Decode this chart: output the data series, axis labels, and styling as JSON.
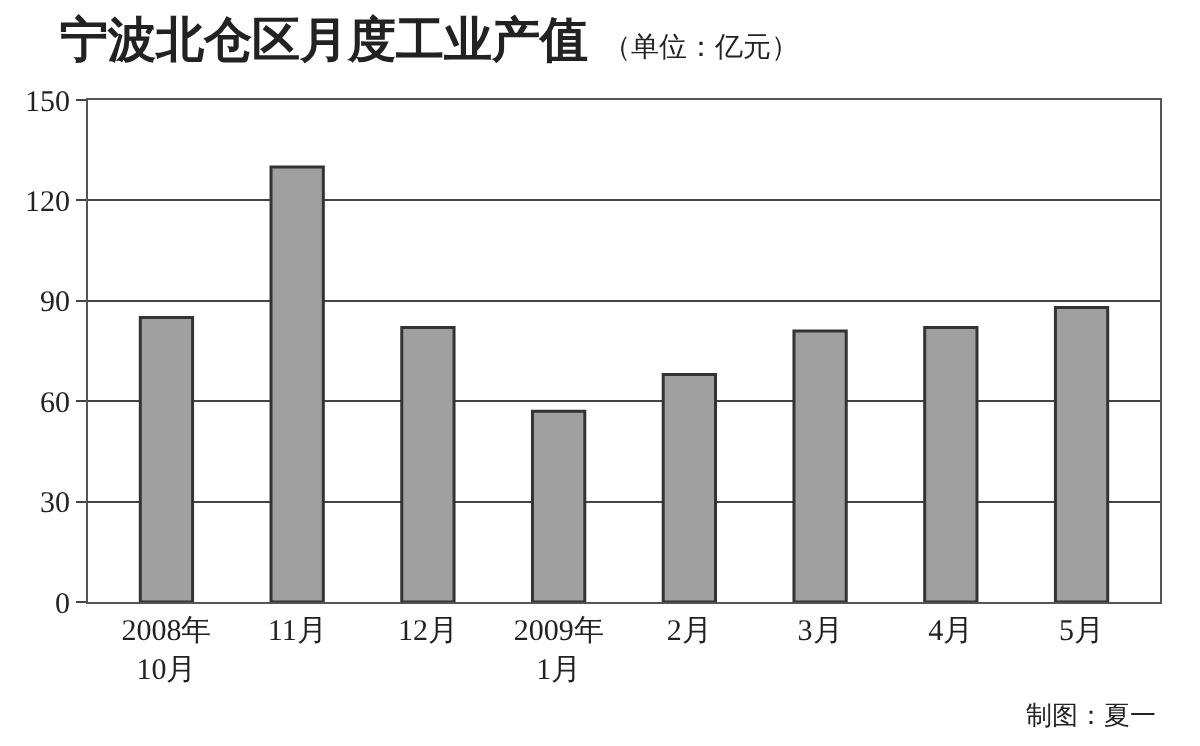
{
  "chart_data": {
    "type": "bar",
    "title": "宁波北仓区月度工业产值",
    "subtitle": "（单位：亿元）",
    "categories": [
      "2008年\n10月",
      "11月",
      "12月",
      "2009年\n1月",
      "2月",
      "3月",
      "4月",
      "5月"
    ],
    "values": [
      85,
      130,
      82,
      57,
      68,
      81,
      82,
      88
    ],
    "color": "#a0a0a0",
    "ylim": [
      0,
      150
    ],
    "yticks": [
      0,
      30,
      60,
      90,
      120,
      150
    ],
    "grid": "y",
    "legend": false,
    "annotations": [
      "制图：夏一"
    ]
  }
}
